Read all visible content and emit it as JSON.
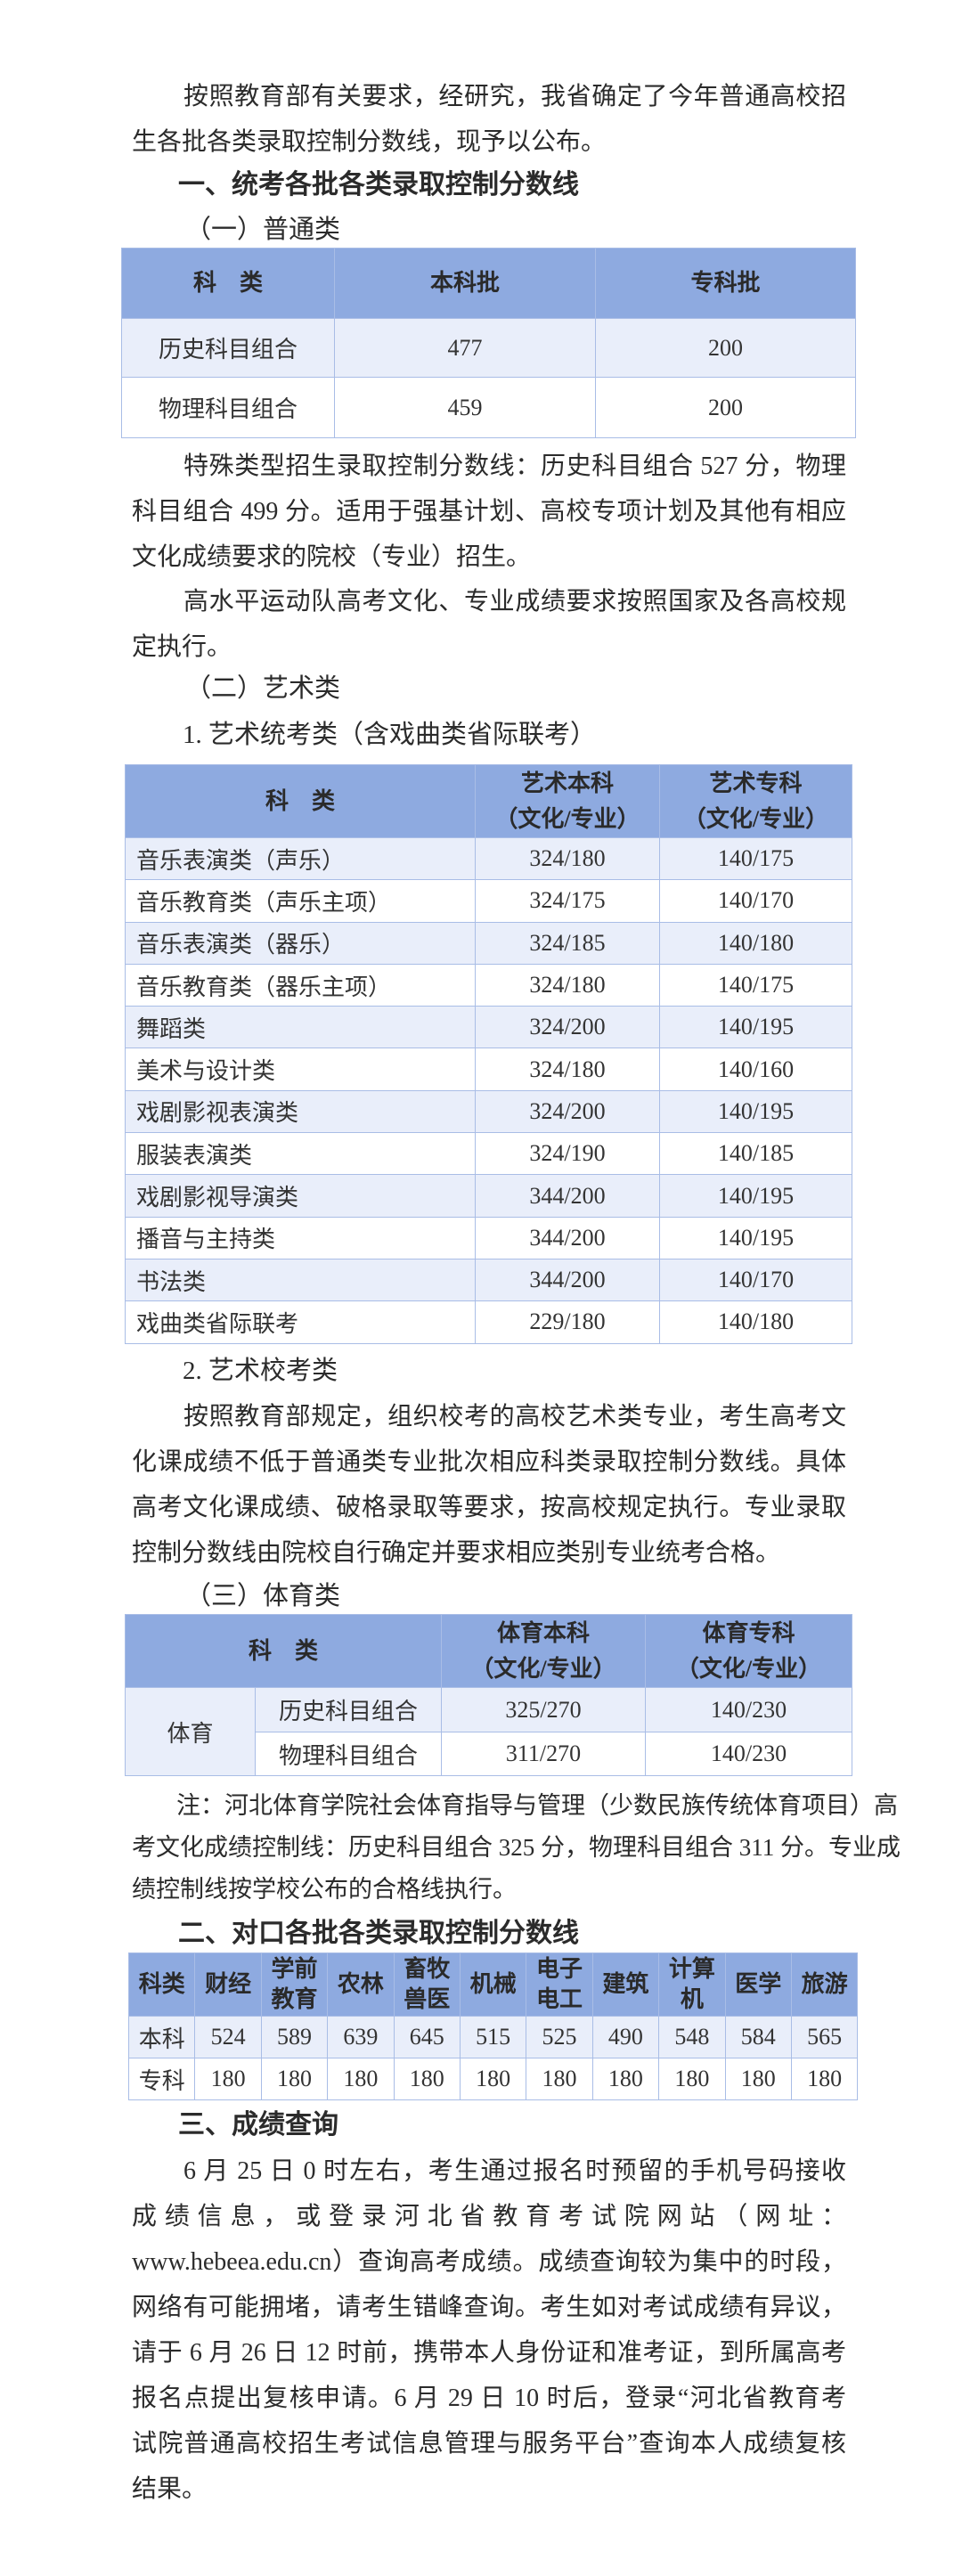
{
  "intro": [
    "按照教育部有关要求，经研究，我省确定了今年普通高校招",
    "生各批各类录取控制分数线，现予以公布。"
  ],
  "section1": {
    "title": "一、统考各批各类录取控制分数线",
    "general": {
      "title": "（一）普通类",
      "headers": [
        "科　类",
        "本科批",
        "专科批"
      ],
      "rows": [
        [
          "历史科目组合",
          "477",
          "200"
        ],
        [
          "物理科目组合",
          "459",
          "200"
        ]
      ],
      "special": [
        "特殊类型招生录取控制分数线：历史科目组合 527 分，物理",
        "科目组合 499 分。适用于强基计划、高校专项计划及其他有相应",
        "文化成绩要求的院校（专业）招生。"
      ],
      "sports_team": [
        "高水平运动队高考文化、专业成绩要求按照国家及各高校规",
        "定执行。"
      ]
    },
    "art": {
      "title": "（二）艺术类",
      "sub1": "1. 艺术统考类（含戏曲类省际联考）",
      "headers": [
        "科　类",
        "艺术本科",
        "（文化/专业）",
        "艺术专科",
        "（文化/专业）"
      ],
      "rows": [
        [
          "音乐表演类（声乐）",
          "324/180",
          "140/175"
        ],
        [
          "音乐教育类（声乐主项）",
          "324/175",
          "140/170"
        ],
        [
          "音乐表演类（器乐）",
          "324/185",
          "140/180"
        ],
        [
          "音乐教育类（器乐主项）",
          "324/180",
          "140/175"
        ],
        [
          "舞蹈类",
          "324/200",
          "140/195"
        ],
        [
          "美术与设计类",
          "324/180",
          "140/160"
        ],
        [
          "戏剧影视表演类",
          "324/200",
          "140/195"
        ],
        [
          "服装表演类",
          "324/190",
          "140/185"
        ],
        [
          "戏剧影视导演类",
          "344/200",
          "140/195"
        ],
        [
          "播音与主持类",
          "344/200",
          "140/195"
        ],
        [
          "书法类",
          "344/200",
          "140/170"
        ],
        [
          "戏曲类省际联考",
          "229/180",
          "140/180"
        ]
      ],
      "sub2": "2. 艺术校考类",
      "school_exam": [
        "按照教育部规定，组织校考的高校艺术类专业，考生高考文",
        "化课成绩不低于普通类专业批次相应科类录取控制分数线。具体",
        "高考文化课成绩、破格录取等要求，按高校规定执行。专业录取",
        "控制分数线由院校自行确定并要求相应类别专业统考合格。"
      ]
    },
    "pe": {
      "title": "（三）体育类",
      "headers": [
        "科　类",
        "体育本科",
        "（文化/专业）",
        "体育专科",
        "（文化/专业）"
      ],
      "group": "体育",
      "rows": [
        [
          "历史科目组合",
          "325/270",
          "140/230"
        ],
        [
          "物理科目组合",
          "311/270",
          "140/230"
        ]
      ],
      "note": [
        "注：河北体育学院社会体育指导与管理（少数民族传统体育项目）高",
        "考文化成绩控制线：历史科目组合 325 分，物理科目组合 311 分。专业成",
        "绩控制线按学校公布的合格线执行。"
      ]
    }
  },
  "section2": {
    "title": "二、对口各批各类录取控制分数线",
    "headers": [
      [
        "科类"
      ],
      [
        "财经"
      ],
      [
        "学前",
        "教育"
      ],
      [
        "农林"
      ],
      [
        "畜牧",
        "兽医"
      ],
      [
        "机械"
      ],
      [
        "电子",
        "电工"
      ],
      [
        "建筑"
      ],
      [
        "计算",
        "机"
      ],
      [
        "医学"
      ],
      [
        "旅游"
      ]
    ],
    "rows": [
      [
        "本科",
        "524",
        "589",
        "639",
        "645",
        "515",
        "525",
        "490",
        "548",
        "584",
        "565"
      ],
      [
        "专科",
        "180",
        "180",
        "180",
        "180",
        "180",
        "180",
        "180",
        "180",
        "180",
        "180"
      ]
    ]
  },
  "section3": {
    "title": "三、成绩查询",
    "text": [
      "6 月 25 日 0 时左右，考生通过报名时预留的手机号码接收",
      "成绩信息，或登录河北省教育考试院网站（网址：",
      "www.hebeea.edu.cn）查询高考成绩。成绩查询较为集中的时段，",
      "网络有可能拥堵，请考生错峰查询。考生如对考试成绩有异议，",
      "请于 6 月 26 日 12 时前，携带本人身份证和准考证，到所属高考",
      "报名点提出复核申请。6 月 29 日 10 时后，登录“河北省教育考",
      "试院普通高校招生考试信息管理与服务平台”查询本人成绩复核",
      "结果。"
    ]
  },
  "colors": {
    "header_bg": "#8eaae0",
    "stripe_bg": "#e9eefa",
    "border": "#a9bde6"
  }
}
